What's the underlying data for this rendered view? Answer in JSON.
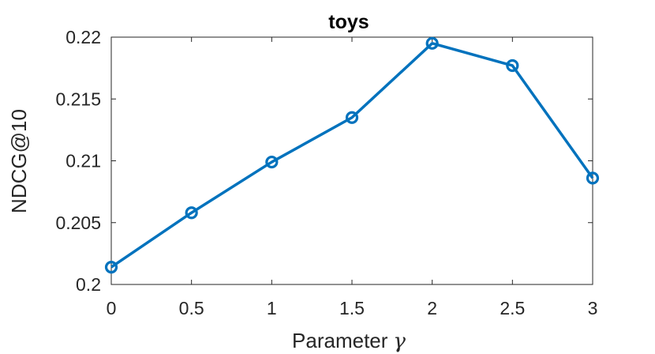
{
  "chart_data": {
    "type": "line",
    "title": "toys",
    "xlabel": "Parameter",
    "xlabel_symbol": "γ",
    "ylabel": "NDCG@10",
    "x": [
      0,
      0.5,
      1,
      1.5,
      2,
      2.5,
      3
    ],
    "series": [
      {
        "values": [
          0.2014,
          0.2058,
          0.2099,
          0.2135,
          0.2195,
          0.2177,
          0.2086
        ],
        "color": "#0072BD"
      }
    ],
    "xlim": [
      0,
      3
    ],
    "ylim": [
      0.2,
      0.22
    ],
    "xticks": [
      {
        "value": 0,
        "label": "0"
      },
      {
        "value": 0.5,
        "label": "0.5"
      },
      {
        "value": 1,
        "label": "1"
      },
      {
        "value": 1.5,
        "label": "1.5"
      },
      {
        "value": 2,
        "label": "2"
      },
      {
        "value": 2.5,
        "label": "2.5"
      },
      {
        "value": 3,
        "label": "3"
      }
    ],
    "yticks": [
      {
        "value": 0.2,
        "label": "0.2"
      },
      {
        "value": 0.205,
        "label": "0.205"
      },
      {
        "value": 0.21,
        "label": "0.21"
      },
      {
        "value": 0.215,
        "label": "0.215"
      },
      {
        "value": 0.22,
        "label": "0.22"
      }
    ],
    "marker": "circle-open",
    "grid": false
  }
}
